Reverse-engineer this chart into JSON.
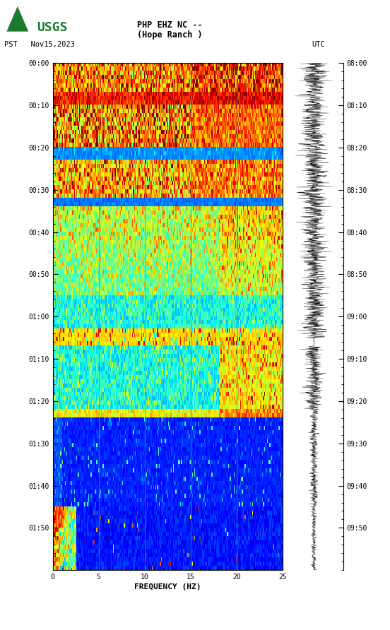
{
  "title_line1": "PHP EHZ NC --",
  "title_line2": "(Hope Ranch )",
  "left_label": "PST   Nov15,2023",
  "right_label": "UTC",
  "freq_xlabel": "FREQUENCY (HZ)",
  "x_min": 0,
  "x_max": 25,
  "x_ticks": [
    0,
    5,
    10,
    15,
    20,
    25
  ],
  "pst_times": [
    "00:00",
    "00:10",
    "00:20",
    "00:30",
    "00:40",
    "00:50",
    "01:00",
    "01:10",
    "01:20",
    "01:30",
    "01:40",
    "01:50"
  ],
  "utc_times": [
    "08:00",
    "08:10",
    "08:20",
    "08:30",
    "08:40",
    "08:50",
    "09:00",
    "09:10",
    "09:20",
    "09:30",
    "09:40",
    "09:50"
  ],
  "n_time_bins": 120,
  "n_freq_bins": 250,
  "background_color": "#ffffff",
  "usgs_green": "#1a7a2e",
  "grid_color": "#3399aa",
  "grid_alpha": 0.7,
  "vertical_lines_freq": [
    5,
    10,
    15,
    20
  ],
  "spectrogram_cmap": "jet"
}
